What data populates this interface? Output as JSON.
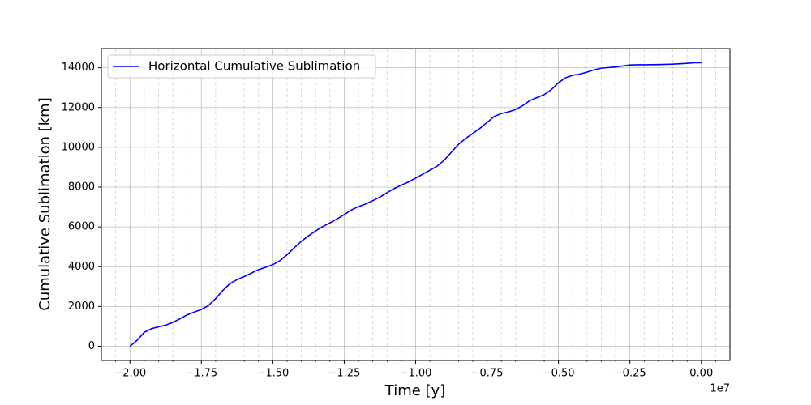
{
  "chart_data": {
    "type": "line",
    "xlabel": "Time [y]",
    "ylabel": "Cumulative Sublimation [km]",
    "x_offset_label": "1e7",
    "x": [
      -2.0,
      -1.975,
      -1.95,
      -1.925,
      -1.9,
      -1.875,
      -1.85,
      -1.825,
      -1.8,
      -1.775,
      -1.75,
      -1.725,
      -1.7,
      -1.675,
      -1.65,
      -1.625,
      -1.6,
      -1.575,
      -1.55,
      -1.525,
      -1.5,
      -1.475,
      -1.45,
      -1.425,
      -1.4,
      -1.375,
      -1.35,
      -1.325,
      -1.3,
      -1.275,
      -1.25,
      -1.225,
      -1.2,
      -1.175,
      -1.15,
      -1.125,
      -1.1,
      -1.075,
      -1.05,
      -1.025,
      -1.0,
      -0.975,
      -0.95,
      -0.925,
      -0.9,
      -0.875,
      -0.85,
      -0.825,
      -0.8,
      -0.775,
      -0.75,
      -0.725,
      -0.7,
      -0.675,
      -0.65,
      -0.625,
      -0.6,
      -0.575,
      -0.55,
      -0.525,
      -0.5,
      -0.475,
      -0.45,
      -0.425,
      -0.4,
      -0.375,
      -0.35,
      -0.325,
      -0.3,
      -0.275,
      -0.25,
      -0.225,
      -0.2,
      -0.15,
      -0.1,
      -0.05,
      -0.025,
      0.0
    ],
    "series": [
      {
        "name": "Horizontal Cumulative Sublimation",
        "color": "#0000ff",
        "values": [
          0,
          300,
          700,
          880,
          980,
          1060,
          1200,
          1380,
          1580,
          1720,
          1850,
          2050,
          2400,
          2800,
          3150,
          3350,
          3500,
          3680,
          3850,
          3970,
          4100,
          4300,
          4600,
          4950,
          5280,
          5550,
          5800,
          6020,
          6200,
          6400,
          6620,
          6850,
          7020,
          7150,
          7320,
          7500,
          7720,
          7930,
          8100,
          8260,
          8450,
          8650,
          8850,
          9050,
          9350,
          9750,
          10150,
          10450,
          10700,
          10950,
          11250,
          11550,
          11700,
          11780,
          11900,
          12100,
          12350,
          12500,
          12650,
          12900,
          13250,
          13500,
          13620,
          13680,
          13780,
          13900,
          13980,
          14010,
          14040,
          14090,
          14140,
          14150,
          14150,
          14160,
          14180,
          14220,
          14250,
          14250
        ]
      }
    ],
    "xlim": [
      -2.1,
      0.1
    ],
    "ylim": [
      -712,
      14962
    ],
    "xticks": [
      {
        "value": -2.0,
        "label": "−2.00"
      },
      {
        "value": -1.75,
        "label": "−1.75"
      },
      {
        "value": -1.5,
        "label": "−1.50"
      },
      {
        "value": -1.25,
        "label": "−1.25"
      },
      {
        "value": -1.0,
        "label": "−1.00"
      },
      {
        "value": -0.75,
        "label": "−0.75"
      },
      {
        "value": -0.5,
        "label": "−0.50"
      },
      {
        "value": -0.25,
        "label": "−0.25"
      },
      {
        "value": 0,
        "label": "0.00"
      }
    ],
    "xminor": [
      -2.05,
      -1.95,
      -1.9,
      -1.85,
      -1.8,
      -1.7,
      -1.65,
      -1.6,
      -1.55,
      -1.45,
      -1.4,
      -1.35,
      -1.3,
      -1.2,
      -1.15,
      -1.1,
      -1.05,
      -0.95,
      -0.9,
      -0.85,
      -0.8,
      -0.7,
      -0.65,
      -0.6,
      -0.55,
      -0.45,
      -0.4,
      -0.35,
      -0.3,
      -0.2,
      -0.15,
      -0.1,
      -0.05,
      0.05
    ],
    "yticks": [
      0,
      2000,
      4000,
      6000,
      8000,
      10000,
      12000,
      14000
    ],
    "grid": true,
    "minor_grid": true,
    "legend": "upper left"
  }
}
